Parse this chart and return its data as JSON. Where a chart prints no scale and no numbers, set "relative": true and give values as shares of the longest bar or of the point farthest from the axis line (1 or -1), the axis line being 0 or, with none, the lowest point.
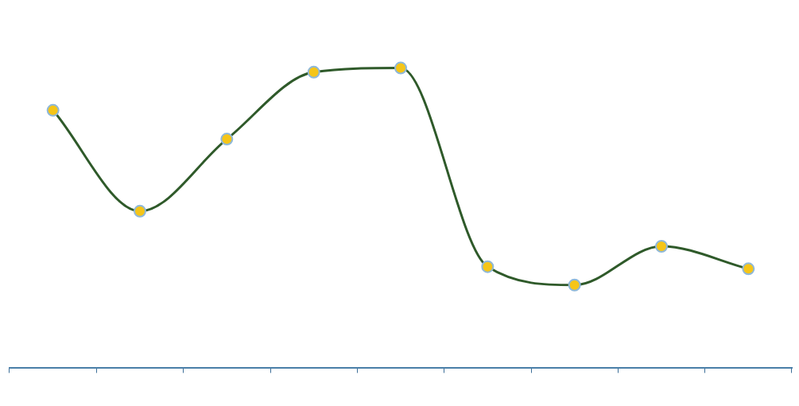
{
  "chart_data": {
    "type": "line",
    "relative": true,
    "categories": [
      null,
      null,
      null,
      null,
      null,
      null,
      null,
      null,
      null
    ],
    "series": [
      {
        "color": "#2f5a2a",
        "values": [
          0.859,
          0.523,
          0.763,
          0.986,
          1,
          0.338,
          0.277,
          0.406,
          0.331
        ]
      }
    ],
    "marker": "circle",
    "grid": false,
    "legend": false
  }
}
